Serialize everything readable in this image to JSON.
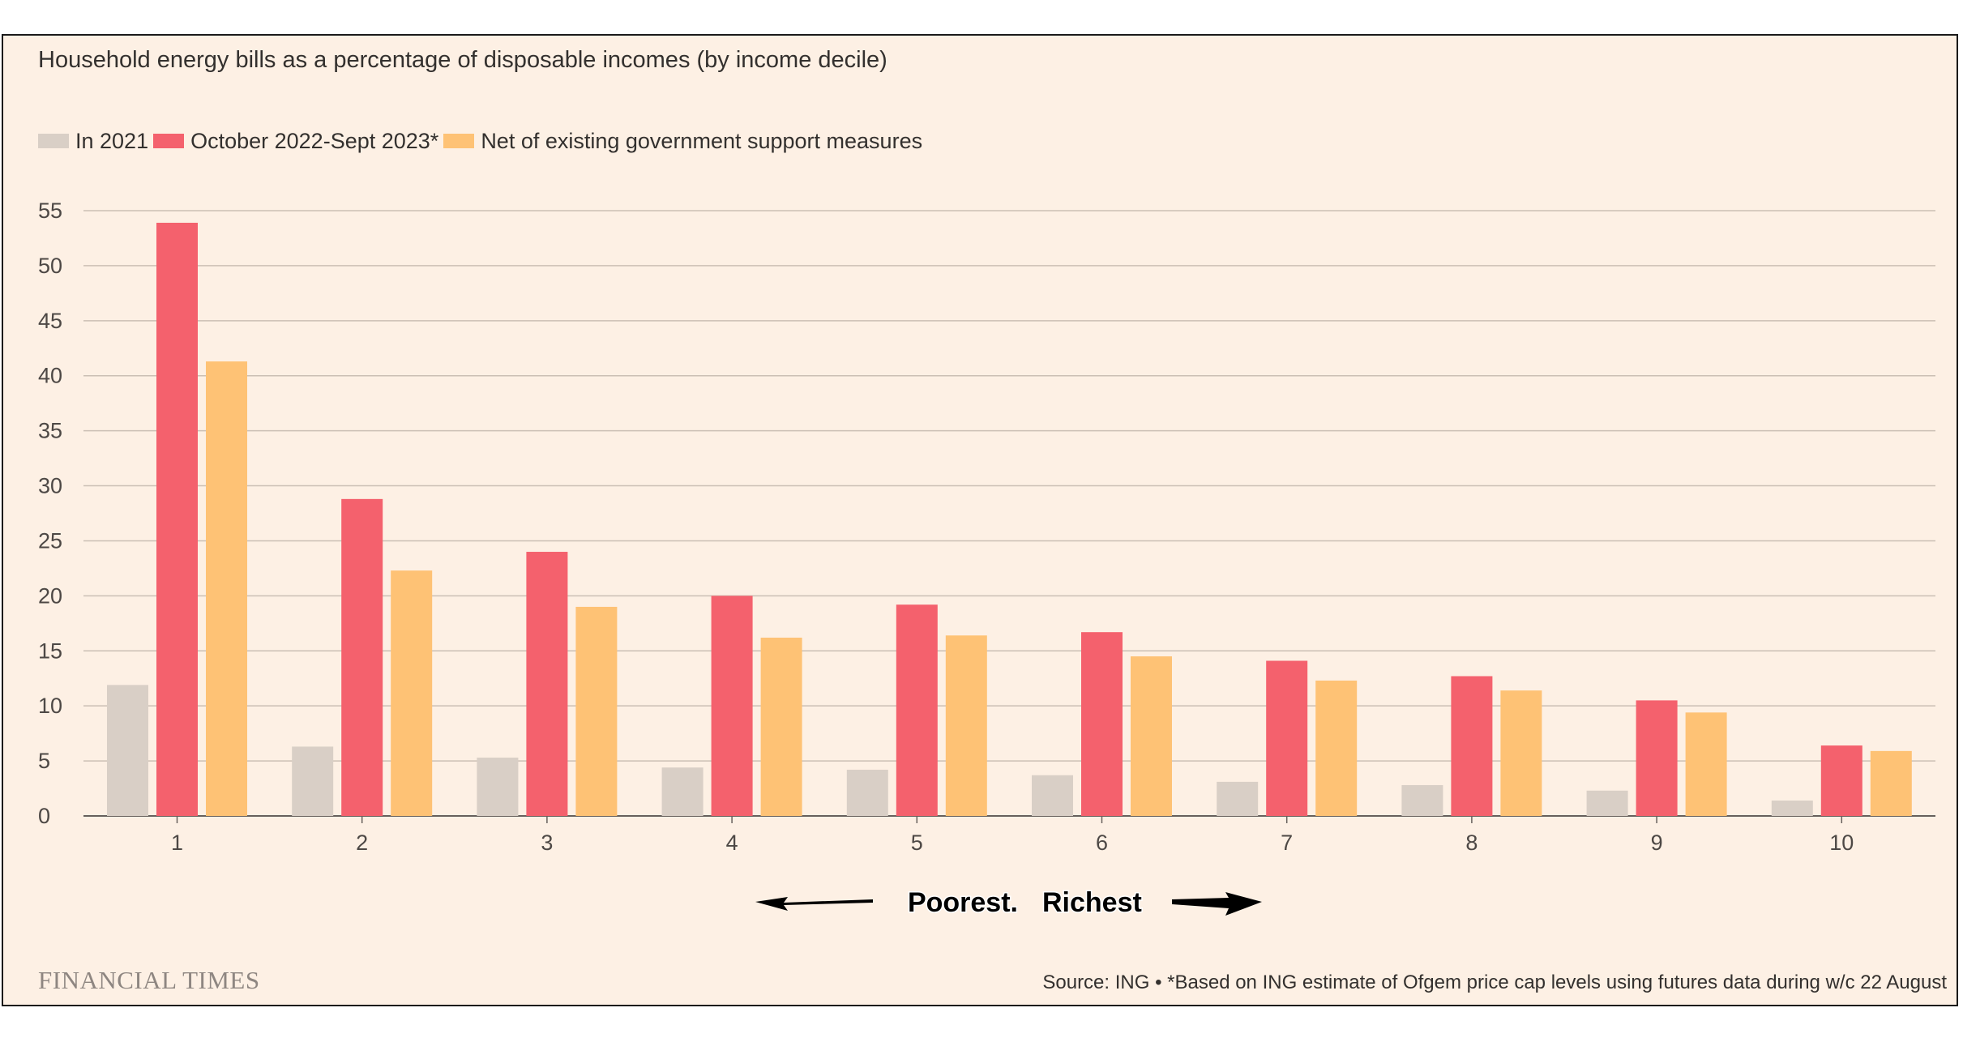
{
  "chart_data": {
    "type": "bar",
    "title": "Household energy bills as a percentage of disposable incomes (by income decile)",
    "categories": [
      "1",
      "2",
      "3",
      "4",
      "5",
      "6",
      "7",
      "8",
      "9",
      "10"
    ],
    "series": [
      {
        "name": "In 2021",
        "color": "#d9cfc6",
        "values": [
          11.9,
          6.3,
          5.3,
          4.4,
          4.2,
          3.7,
          3.1,
          2.8,
          2.3,
          1.4
        ]
      },
      {
        "name": "October 2022-Sept 2023*",
        "color": "#f4616d",
        "values": [
          53.9,
          28.8,
          24.0,
          20.0,
          19.2,
          16.7,
          14.1,
          12.7,
          10.5,
          6.4
        ]
      },
      {
        "name": "Net of existing government support measures",
        "color": "#fec275",
        "values": [
          41.3,
          22.3,
          19.0,
          16.2,
          16.4,
          14.5,
          12.3,
          11.4,
          9.4,
          5.9
        ]
      }
    ],
    "yticks": [
      0,
      5,
      10,
      15,
      20,
      25,
      30,
      35,
      40,
      45,
      50,
      55
    ],
    "ylim": [
      0,
      55
    ],
    "xlabel": "",
    "ylabel": "",
    "grid": true,
    "legend": "top-left"
  },
  "axis_annotation": {
    "poorest_label": "Poorest.",
    "richest_label": "Richest"
  },
  "footer": {
    "logo_text": "FINANCIAL TIMES",
    "source_text": "Source: ING • *Based on ING estimate of Ofgem price cap levels using futures data during w/c 22 August"
  }
}
